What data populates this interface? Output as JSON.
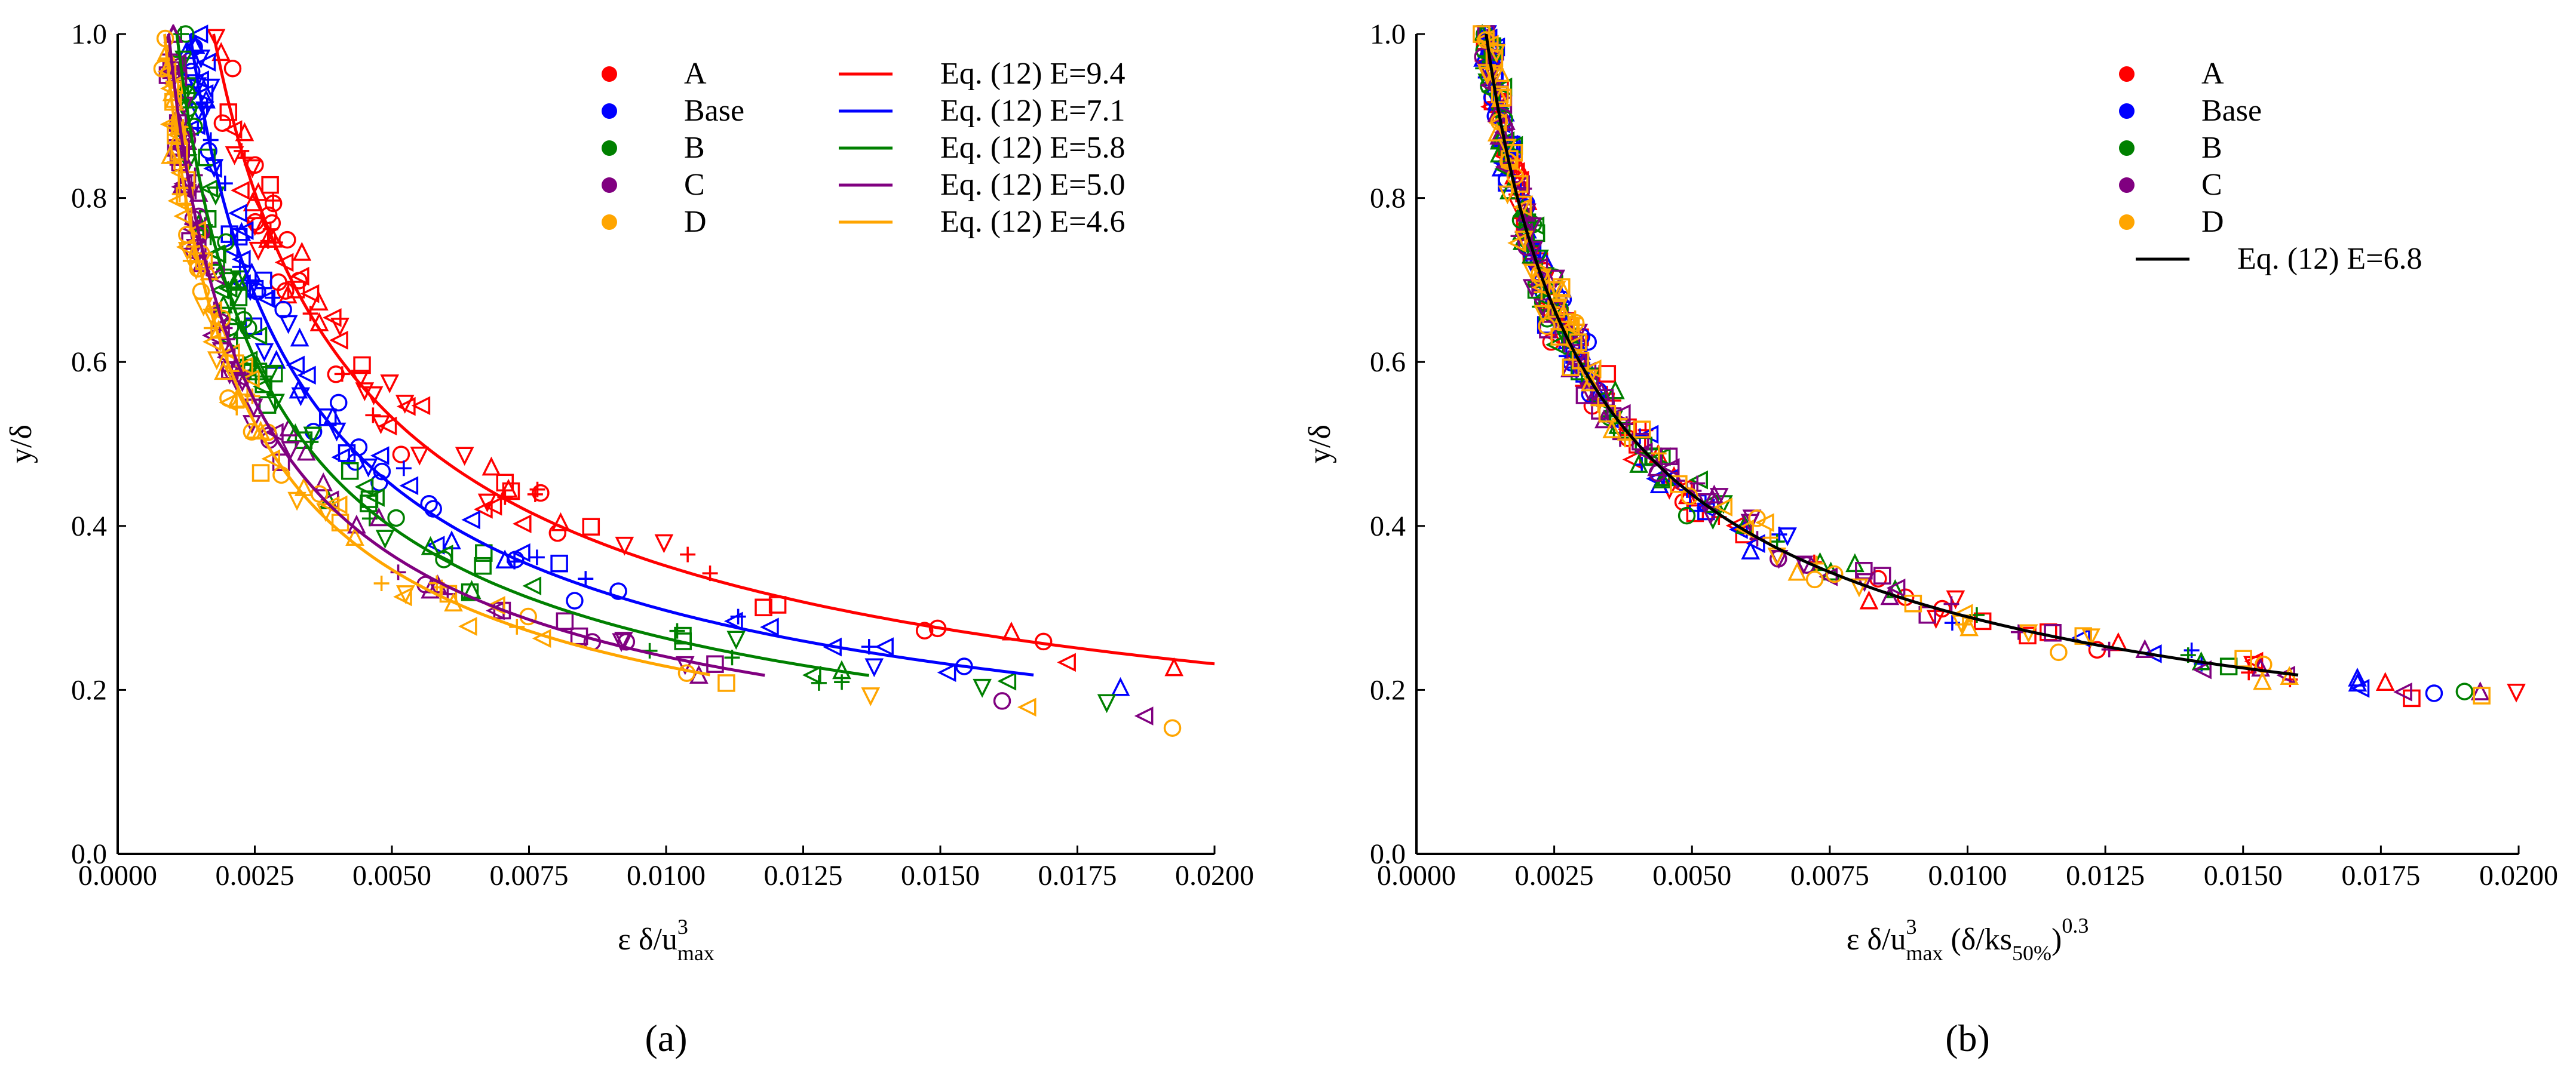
{
  "chart_data": [
    {
      "type": "scatter",
      "panel_label": "(a)",
      "xlabel": {
        "base": "ε δ/u",
        "sup": "3",
        "sub": "max"
      },
      "ylabel": "y/δ",
      "xlim": [
        0,
        0.02
      ],
      "ylim": [
        0,
        1.0
      ],
      "xticks": [
        "0.0000",
        "0.0025",
        "0.0050",
        "0.0075",
        "0.0100",
        "0.0125",
        "0.0150",
        "0.0175",
        "0.0200"
      ],
      "yticks": [
        "0.0",
        "0.2",
        "0.4",
        "0.6",
        "0.8",
        "1.0"
      ],
      "legend_position": "top-right",
      "series": [
        {
          "name": "A",
          "color": "#ff0000",
          "E": 9.4
        },
        {
          "name": "Base",
          "color": "#0000ff",
          "E": 7.1
        },
        {
          "name": "B",
          "color": "#008000",
          "E": 5.8
        },
        {
          "name": "C",
          "color": "#800080",
          "E": 5.0
        },
        {
          "name": "D",
          "color": "#ffa500",
          "E": 4.6
        }
      ],
      "fit_lines": [
        {
          "label": "Eq. (12) E=9.4",
          "color": "#ff0000",
          "E": 9.4,
          "x_end": 0.02
        },
        {
          "label": "Eq. (12) E=7.1",
          "color": "#0000ff",
          "E": 7.1,
          "x_end": 0.0167
        },
        {
          "label": "Eq. (12) E=5.8",
          "color": "#008000",
          "E": 5.8,
          "x_end": 0.0137
        },
        {
          "label": "Eq. (12) E=5.0",
          "color": "#800080",
          "E": 5.0,
          "x_end": 0.0118
        },
        {
          "label": "Eq. (12) E=4.6",
          "color": "#ffa500",
          "E": 4.6,
          "x_end": 0.0108
        }
      ]
    },
    {
      "type": "scatter",
      "panel_label": "(b)",
      "xlabel": {
        "base": "ε δ/u",
        "sup": "3",
        "sub": "max",
        "rest": " (δ/ks",
        "sub2": "50%",
        "close": ")",
        "sup2": "0.3"
      },
      "ylabel": "y/δ",
      "xlim": [
        0,
        0.02
      ],
      "ylim": [
        0,
        1.0
      ],
      "xticks": [
        "0.0000",
        "0.0025",
        "0.0050",
        "0.0075",
        "0.0100",
        "0.0125",
        "0.0150",
        "0.0175",
        "0.0200"
      ],
      "yticks": [
        "0.0",
        "0.2",
        "0.4",
        "0.6",
        "0.8",
        "1.0"
      ],
      "legend_position": "top-right",
      "series": [
        {
          "name": "A",
          "color": "#ff0000"
        },
        {
          "name": "Base",
          "color": "#0000ff"
        },
        {
          "name": "B",
          "color": "#008000"
        },
        {
          "name": "C",
          "color": "#800080"
        },
        {
          "name": "D",
          "color": "#ffa500"
        }
      ],
      "fit_lines": [
        {
          "label": "Eq. (12) E=6.8",
          "color": "#000000",
          "E": 6.8,
          "x_end": 0.016
        }
      ]
    }
  ]
}
